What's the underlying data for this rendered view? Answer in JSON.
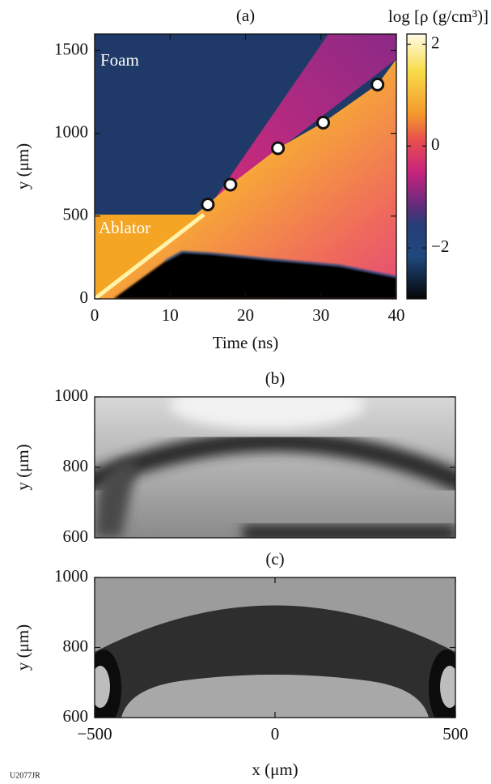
{
  "figure_id": "U2077JR",
  "chart_data": [
    {
      "type": "heatmap",
      "title": "(a)",
      "xlabel": "Time (ns)",
      "ylabel": "y (μm)",
      "xlim": [
        0,
        40
      ],
      "xticks": [
        0,
        10,
        20,
        30,
        40
      ],
      "ylim": [
        0,
        1600
      ],
      "yticks": [
        0,
        500,
        1000,
        1500
      ],
      "annotations": [
        "Foam",
        "Ablator"
      ],
      "colorbar": {
        "label": "log [ρ (g/cm³)]",
        "lim": [
          -3,
          2.2
        ],
        "ticks": [
          2,
          0,
          {
            "value": -2,
            "label": "−2"
          }
        ]
      },
      "points": {
        "x": [
          15,
          18,
          24.3,
          30.3,
          37.5
        ],
        "y": [
          570,
          690,
          910,
          1065,
          1295
        ]
      }
    },
    {
      "type": "image",
      "title": "(b)",
      "ylabel": "y (μm)",
      "xlim": [
        -500,
        500
      ],
      "ylim": [
        600,
        1000
      ],
      "yticks": [
        600,
        800,
        1000
      ]
    },
    {
      "type": "image",
      "title": "(c)",
      "xlabel": "x (μm)",
      "ylabel": "y (μm)",
      "xlim": [
        -500,
        500
      ],
      "xticks": [
        {
          "value": -500,
          "label": "−500"
        },
        0,
        500
      ],
      "ylim": [
        600,
        1000
      ],
      "yticks": [
        600,
        800,
        1000
      ]
    }
  ]
}
